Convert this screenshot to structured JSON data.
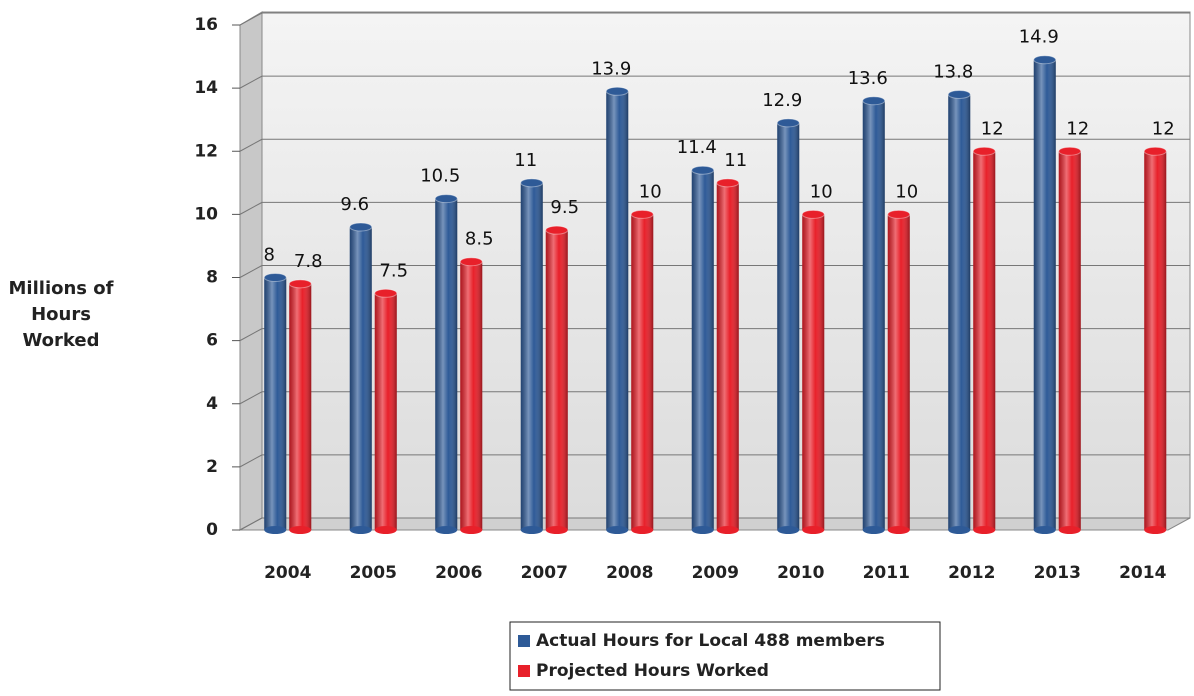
{
  "chart_data": {
    "type": "bar",
    "y_label": "Millions of Hours Worked",
    "categories": [
      "2004",
      "2005",
      "2006",
      "2007",
      "2008",
      "2009",
      "2010",
      "2011",
      "2012",
      "2013",
      "2014"
    ],
    "series": [
      {
        "name": "Actual Hours for Local 488 members",
        "color": "#2e5a97",
        "values": [
          8,
          9.6,
          10.5,
          11,
          13.9,
          11.4,
          12.9,
          13.6,
          13.8,
          14.9,
          null
        ]
      },
      {
        "name": "Projected Hours Worked",
        "color": "#e8202a",
        "values": [
          7.8,
          7.5,
          8.5,
          9.5,
          10,
          11,
          10,
          10,
          12,
          12,
          12
        ]
      }
    ],
    "ylim": [
      0,
      16
    ],
    "yticks": [
      0,
      2,
      4,
      6,
      8,
      10,
      12,
      14,
      16
    ],
    "grid": true,
    "legend": "bottom"
  }
}
